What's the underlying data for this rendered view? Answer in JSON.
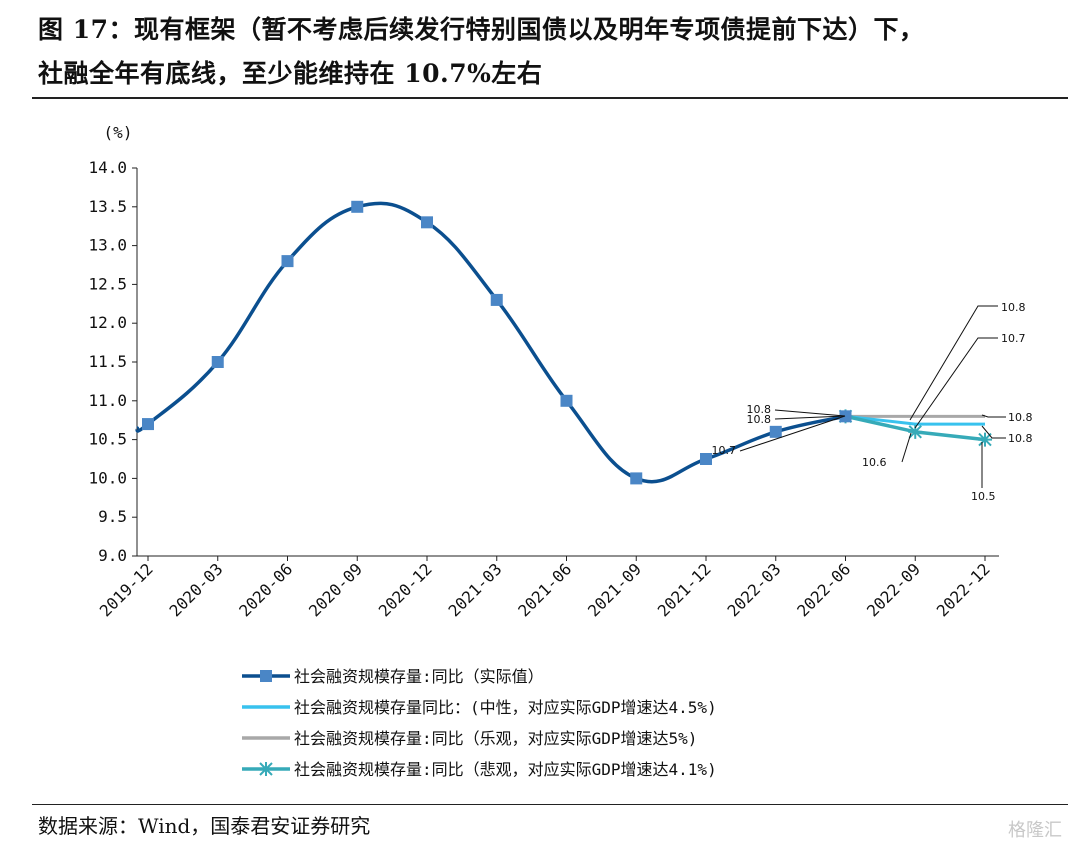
{
  "header": {
    "title_line1": "图 17：现有框架（暂不考虑后续发行特别国债以及明年专项债提前下达）下，",
    "title_line2": "社融全年有底线，至少能维持在 10.7%左右"
  },
  "footer": {
    "source": "数据来源：Wind，国泰君安证券研究",
    "watermark": "格隆汇"
  },
  "chart_data": {
    "type": "line",
    "ylabel": "(%)",
    "ylim": [
      9.0,
      14.0
    ],
    "ytick_step": 0.5,
    "yticks": [
      "9.0",
      "9.5",
      "10.0",
      "10.5",
      "11.0",
      "11.5",
      "12.0",
      "12.5",
      "13.0",
      "13.5",
      "14.0"
    ],
    "categories": [
      "2019-12",
      "2020-03",
      "2020-06",
      "2020-09",
      "2020-12",
      "2021-03",
      "2021-06",
      "2021-09",
      "2021-12",
      "2022-03",
      "2022-06",
      "2022-09",
      "2022-12"
    ],
    "grid": false,
    "legend_position": "bottom",
    "series": [
      {
        "name": "社会融资规模存量:同比（实际值）",
        "color": "#0b4f8f",
        "marker": "square",
        "marker_color": "#4a86c6",
        "smooth": true,
        "values": [
          10.7,
          11.5,
          12.8,
          13.5,
          13.3,
          12.3,
          11.0,
          10.0,
          10.25,
          10.6,
          10.8,
          null,
          null
        ]
      },
      {
        "name": "社会融资规模存量同比：(中性，对应实际GDP增速达4.5%)",
        "color": "#38c2ee",
        "marker": "none",
        "values": [
          null,
          null,
          null,
          null,
          null,
          null,
          null,
          null,
          null,
          null,
          10.8,
          10.7,
          10.7
        ]
      },
      {
        "name": "社会融资规模存量:同比（乐观，对应实际GDP增速达5%)",
        "color": "#a8a8a8",
        "marker": "none",
        "values": [
          null,
          null,
          null,
          null,
          null,
          null,
          null,
          null,
          null,
          null,
          10.8,
          10.8,
          10.8
        ]
      },
      {
        "name": "社会融资规模存量:同比（悲观，对应实际GDP增速达4.1%)",
        "color": "#36aab8",
        "marker": "star",
        "values": [
          null,
          null,
          null,
          null,
          null,
          null,
          null,
          null,
          null,
          null,
          10.8,
          10.6,
          10.5
        ]
      }
    ],
    "annotations": [
      {
        "text": "10.8"
      },
      {
        "text": "10.7"
      },
      {
        "text": "10.8"
      },
      {
        "text": "10.8"
      },
      {
        "text": "10.8"
      },
      {
        "text": "10.8"
      },
      {
        "text": "10.7"
      },
      {
        "text": "10.6"
      },
      {
        "text": "10.5"
      }
    ]
  }
}
